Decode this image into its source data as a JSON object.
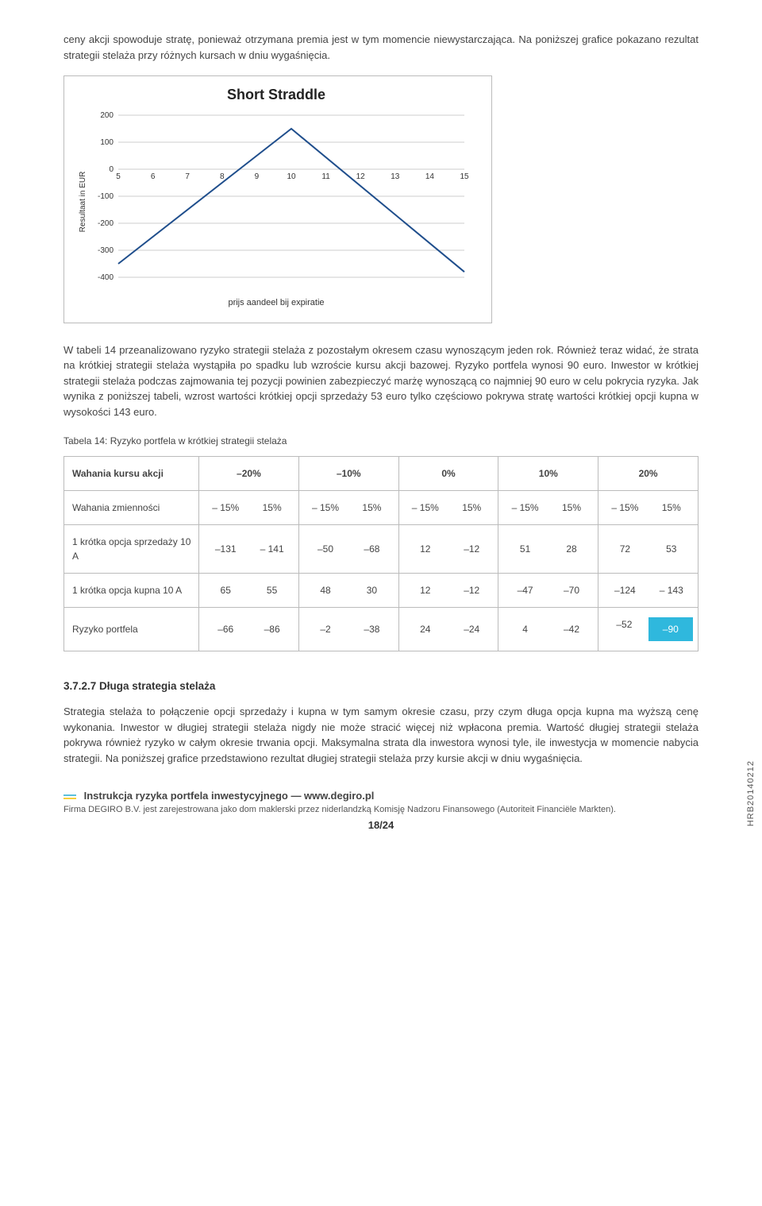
{
  "intro": {
    "p1": "ceny akcji spowoduje stratę, ponieważ otrzymana premia jest w tym momencie niewystarczająca. Na poniższej grafice pokazano rezultat strategii stelaża przy różnych kursach w dniu wygaśnięcia."
  },
  "chart": {
    "title": "Short Straddle",
    "type": "line",
    "ylabel": "Resultaat in EUR",
    "xcaption": "prijs aandeel bij expiratie",
    "x_ticks": [
      5,
      6,
      7,
      8,
      9,
      10,
      11,
      12,
      13,
      14,
      15
    ],
    "y_ticks": [
      200,
      100,
      0,
      -100,
      -200,
      -300,
      -400
    ],
    "ylim_top": 200,
    "ylim_bottom": -400,
    "line_color": "#1f4e8c",
    "grid_color": "#cccccc",
    "background_color": "#ffffff",
    "series_x": [
      5,
      10,
      15
    ],
    "series_y": [
      -350,
      150,
      -380
    ],
    "ylabel_fontsize": 10,
    "tick_fontsize": 10
  },
  "middle_para": "W tabeli 14 przeanalizowano ryzyko strategii stelaża z pozostałym okresem czasu wynoszącym jeden rok. Również teraz widać, że strata na krótkiej strategii stelaża wystąpiła po spadku lub wzroście kursu akcji bazowej. Ryzyko portfela wynosi 90 euro. Inwestor w krótkiej strategii stelaża podczas zajmowania tej pozycji powinien zabezpieczyć marżę wynoszącą co najmniej 90 euro w celu pokrycia ryzyka. Jak wynika z poniższej tabeli, wzrost wartości krótkiej opcji sprzedaży 53 euro tylko częściowo pokrywa stratę wartości krótkiej opcji kupna w wysokości 143 euro.",
  "table": {
    "caption": "Tabela 14: Ryzyko portfela w krótkiej strategii stelaża",
    "header_first": "Wahania kursu akcji",
    "header_cols": [
      "–20%",
      "–10%",
      "0%",
      "10%",
      "20%"
    ],
    "row_zm_label": "Wahania zmienności",
    "row_zm_cells": [
      {
        "l": "– 15%",
        "r": "15%"
      },
      {
        "l": "– 15%",
        "r": "15%"
      },
      {
        "l": "– 15%",
        "r": "15%"
      },
      {
        "l": "– 15%",
        "r": "15%"
      },
      {
        "l": "– 15%",
        "r": "15%"
      }
    ],
    "row_sp_label": "1 krótka opcja sprzedaży 10 A",
    "row_sp_cells": [
      {
        "l": "–131",
        "r": "– 141"
      },
      {
        "l": "–50",
        "r": "–68"
      },
      {
        "l": "12",
        "r": "–12"
      },
      {
        "l": "51",
        "r": "28"
      },
      {
        "l": "72",
        "r": "53"
      }
    ],
    "row_ku_label": "1 krótka opcja kupna 10 A",
    "row_ku_cells": [
      {
        "l": "65",
        "r": "55"
      },
      {
        "l": "48",
        "r": "30"
      },
      {
        "l": "12",
        "r": "–12"
      },
      {
        "l": "–47",
        "r": "–70"
      },
      {
        "l": "–124",
        "r": "– 143"
      }
    ],
    "row_rp_label": "Ryzyko portfela",
    "row_rp_cells": [
      {
        "l": "–66",
        "r": "–86"
      },
      {
        "l": "–2",
        "r": "–38"
      },
      {
        "l": "24",
        "r": "–24"
      },
      {
        "l": "4",
        "r": "–42"
      },
      {
        "l": "–52",
        "r": "–90",
        "hi_r": true
      }
    ],
    "highlight_color": "#2fb8dd"
  },
  "section": {
    "heading": "3.7.2.7 Długa strategia stelaża",
    "para": "Strategia stelaża to połączenie opcji sprzedaży i kupna w tym samym okresie czasu, przy czym długa opcja kupna ma wyższą cenę wykonania. Inwestor w długiej strategii stelaża nigdy nie może stracić więcej niż wpłacona premia. Wartość długiej strategii stelaża pokrywa również ryzyko w całym okresie trwania opcji. Maksymalna strata dla inwestora wynosi tyle, ile inwestycja w momencie nabycia strategii. Na poniższej grafice przedstawiono rezultat długiej strategii stelaża przy kursie akcji w dniu wygaśnięcia."
  },
  "footer": {
    "line1": "Instrukcja ryzyka portfela inwestycyjnego — www.degiro.pl",
    "line2": "Firma DEGIRO B.V. jest zarejestrowana jako dom maklerski przez niderlandzką Komisję Nadzoru Finansowego (Autoriteit Financiële Markten).",
    "page": "18/24",
    "side_code": "HRB20140212",
    "bar_colors": [
      "#5bc0de",
      "#f7cf3a"
    ]
  }
}
